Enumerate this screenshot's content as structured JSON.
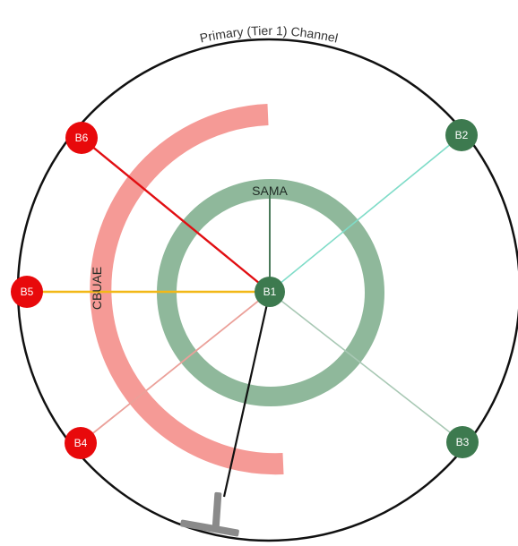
{
  "diagram": {
    "title": "Primary (Tier 1) Channel",
    "inner_ring_label": "SAMA",
    "arc_label": "CBUAE",
    "hub": {
      "label": "B1",
      "color": "#3d7a4f"
    },
    "nodes": [
      {
        "id": "b2",
        "label": "B2",
        "color": "#3d7a4f",
        "link_color": "#7fdcc8"
      },
      {
        "id": "b3",
        "label": "B3",
        "color": "#3d7a4f",
        "link_color": "#a8c8b4"
      },
      {
        "id": "b4",
        "label": "B4",
        "color": "#e8090b",
        "link_color": "#eba099"
      },
      {
        "id": "b5",
        "label": "B5",
        "color": "#e8090b",
        "link_color": "#f2b817"
      },
      {
        "id": "b6",
        "label": "B6",
        "color": "#e8090b",
        "link_color": "#e10e12"
      }
    ],
    "colors": {
      "outer_ring": "#111111",
      "inner_ring": "#8fb89b",
      "arc": "#f59a96",
      "spoke_sama": "#4a7a5a",
      "spoke_bottom": "#111111",
      "anchor": "#8a8a8a"
    }
  }
}
